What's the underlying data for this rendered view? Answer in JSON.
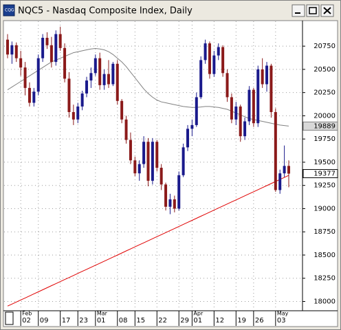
{
  "chart_data": {
    "type": "candlestick",
    "title": "NQC5 - Nasdaq Composite Index, Daily",
    "categories": [
      null,
      null,
      null,
      "02",
      null,
      null,
      null,
      "09",
      null,
      null,
      null,
      null,
      "17",
      null,
      null,
      null,
      "23",
      null,
      null,
      null,
      "01",
      null,
      null,
      null,
      null,
      "08",
      null,
      null,
      null,
      "15",
      null,
      null,
      null,
      null,
      "22",
      null,
      null,
      null,
      null,
      "29",
      null,
      null,
      "01",
      null,
      null,
      null,
      null,
      "12",
      null,
      null,
      null,
      null,
      "19",
      null,
      null,
      null,
      "26",
      null,
      null,
      null,
      null,
      "03",
      null,
      null,
      null
    ],
    "month_labels": [
      null,
      null,
      null,
      "Feb",
      null,
      null,
      null,
      null,
      null,
      null,
      null,
      null,
      null,
      null,
      null,
      null,
      null,
      null,
      null,
      null,
      "Mar",
      null,
      null,
      null,
      null,
      null,
      null,
      null,
      null,
      null,
      null,
      null,
      null,
      null,
      null,
      null,
      null,
      null,
      null,
      null,
      null,
      null,
      "Apr",
      null,
      null,
      null,
      null,
      null,
      null,
      null,
      null,
      null,
      null,
      null,
      null,
      null,
      null,
      null,
      null,
      null,
      null,
      "May",
      null,
      null,
      null
    ],
    "open": [
      20820,
      20660,
      20760,
      20620,
      20520,
      20300,
      20140,
      20260,
      20620,
      20840,
      20760,
      20580,
      20880,
      20730,
      20400,
      20040,
      19960,
      20100,
      20240,
      20380,
      20460,
      20620,
      20330,
      20450,
      20340,
      20560,
      20160,
      19960,
      19740,
      19520,
      19380,
      19480,
      19720,
      19300,
      19720,
      19440,
      19260,
      19020,
      19100,
      19000,
      19360,
      19660,
      19860,
      19900,
      20200,
      20600,
      20780,
      20450,
      20650,
      20740,
      20460,
      20200,
      19960,
      20100,
      19780,
      19940,
      20280,
      19920,
      20500,
      20340,
      20540,
      20040,
      19200,
      19380,
      19460
    ],
    "high": [
      20880,
      20800,
      20790,
      20700,
      20580,
      20360,
      20300,
      20660,
      20880,
      20900,
      20850,
      20920,
      20960,
      20780,
      20470,
      20120,
      20140,
      20270,
      20420,
      20520,
      20660,
      20680,
      20500,
      20600,
      20580,
      20600,
      20180,
      20000,
      19820,
      19560,
      19520,
      19780,
      19760,
      19760,
      19740,
      19480,
      19280,
      19160,
      19140,
      19400,
      19700,
      19900,
      19960,
      20250,
      20640,
      20820,
      20800,
      20700,
      20780,
      20760,
      20500,
      20240,
      20150,
      20120,
      19980,
      20320,
      20300,
      20540,
      20620,
      20580,
      20560,
      20080,
      19420,
      19680,
      19520
    ],
    "low": [
      20620,
      20560,
      20580,
      20430,
      20220,
      20100,
      20100,
      20220,
      20580,
      20720,
      20520,
      20540,
      20700,
      20360,
      19980,
      19900,
      19920,
      20060,
      20200,
      20300,
      20430,
      20280,
      20280,
      20300,
      20320,
      20120,
      19920,
      19700,
      19480,
      19350,
      19300,
      19440,
      19240,
      19260,
      19400,
      19200,
      18980,
      18940,
      18960,
      18980,
      19340,
      19620,
      19780,
      19880,
      20180,
      20560,
      20400,
      20420,
      20600,
      20420,
      20150,
      19920,
      19900,
      19720,
      19740,
      19900,
      19880,
      19880,
      20300,
      20260,
      19980,
      19180,
      19160,
      19340,
      19230
    ],
    "close": [
      20660,
      20760,
      20620,
      20520,
      20300,
      20140,
      20260,
      20620,
      20840,
      20760,
      20580,
      20880,
      20730,
      20400,
      20040,
      19960,
      20100,
      20240,
      20380,
      20460,
      20620,
      20330,
      20450,
      20340,
      20560,
      20160,
      19960,
      19740,
      19520,
      19380,
      19480,
      19720,
      19300,
      19720,
      19440,
      19260,
      19020,
      19100,
      19000,
      19360,
      19660,
      19860,
      19900,
      20200,
      20600,
      20780,
      20450,
      20650,
      20740,
      20460,
      20200,
      19960,
      20100,
      19780,
      19940,
      20280,
      19920,
      20500,
      20340,
      20540,
      20040,
      19200,
      19380,
      19460,
      19377
    ],
    "up_color": "#1a1a8c",
    "down_color": "#8b1a1a",
    "series": [
      {
        "color": "#808080",
        "values": [
          20280,
          20310,
          20340,
          20370,
          20400,
          20430,
          20460,
          20490,
          20520,
          20550,
          20580,
          20600,
          20620,
          20640,
          20660,
          20680,
          20690,
          20700,
          20710,
          20720,
          20725,
          20720,
          20710,
          20690,
          20660,
          20620,
          20580,
          20530,
          20470,
          20410,
          20350,
          20290,
          20240,
          20200,
          20170,
          20150,
          20140,
          20130,
          20120,
          20110,
          20100,
          20095,
          20090,
          20090,
          20095,
          20100,
          20100,
          20095,
          20090,
          20080,
          20070,
          20050,
          20030,
          20010,
          19990,
          19970,
          19960,
          19950,
          19940,
          19930,
          19920,
          19910,
          19900,
          19895,
          19889
        ]
      },
      {
        "color": "#e00000",
        "values": [
          17950,
          17972,
          17994,
          18016,
          18038,
          18060,
          18082,
          18104,
          18126,
          18148,
          18170,
          18192,
          18214,
          18236,
          18258,
          18280,
          18302,
          18324,
          18346,
          18368,
          18390,
          18412,
          18434,
          18456,
          18478,
          18500,
          18522,
          18544,
          18566,
          18588,
          18610,
          18632,
          18654,
          18676,
          18698,
          18720,
          18742,
          18764,
          18786,
          18808,
          18830,
          18852,
          18874,
          18896,
          18918,
          18940,
          18962,
          18984,
          19006,
          19028,
          19050,
          19072,
          19094,
          19116,
          19138,
          19160,
          19182,
          19204,
          19226,
          19248,
          19270,
          19292,
          19314,
          19336,
          19358
        ]
      }
    ],
    "ylim": [
      17900,
      21025
    ],
    "yticks": [
      18000,
      18250,
      18500,
      18750,
      19000,
      19250,
      19500,
      19750,
      20000,
      20250,
      20500,
      20750
    ],
    "grid": true
  }
}
